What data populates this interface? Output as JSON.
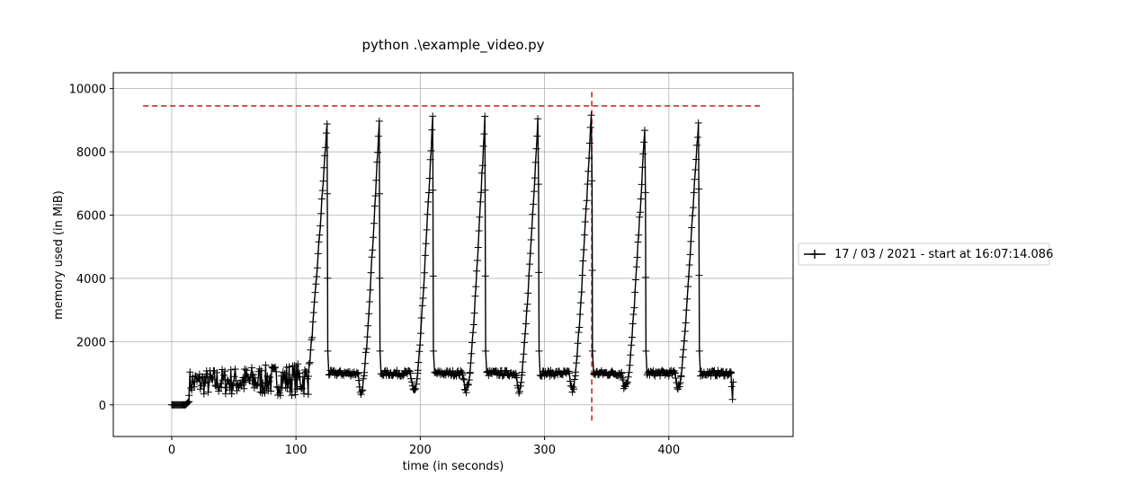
{
  "chart_data": {
    "type": "line",
    "title": "python .\\example_video.py",
    "xlabel": "time (in seconds)",
    "ylabel": "memory used (in MiB)",
    "xlim": [
      -47,
      500
    ],
    "ylim": [
      -1000,
      10500
    ],
    "xticks": [
      0,
      100,
      200,
      300,
      400
    ],
    "yticks": [
      0,
      2000,
      4000,
      6000,
      8000,
      10000
    ],
    "grid": true,
    "legend_position": "outside-right",
    "colors": {
      "series": "#000000",
      "reference": "#d62728",
      "grid": "#b0b0b0"
    },
    "reference_lines": [
      {
        "orientation": "horizontal",
        "y": 9450,
        "x_range": [
          -23,
          475
        ],
        "style": "dashed",
        "color": "#d62728"
      },
      {
        "orientation": "vertical",
        "x": 338,
        "y_range": [
          -500,
          9900
        ],
        "style": "dashed",
        "color": "#d62728"
      }
    ],
    "series": [
      {
        "name": "17 / 03 / 2021 - start at 16:07:14.086",
        "marker": "+",
        "color": "#000000",
        "warmup": {
          "x": [
            0,
            14
          ],
          "y": 0
        },
        "noisy_phase": {
          "x": [
            14,
            110
          ],
          "y_min": 300,
          "y_max_start": 1100,
          "y_max_end": 1350
        },
        "cycles": [
          {
            "start": 110,
            "peak_x": 125,
            "peak_y": 8900,
            "plateau_end": 150,
            "trough_y": 300
          },
          {
            "start": 155,
            "peak_x": 167,
            "peak_y": 8900,
            "plateau_end": 192,
            "trough_y": 300
          },
          {
            "start": 198,
            "peak_x": 210,
            "peak_y": 9050,
            "plateau_end": 234,
            "trough_y": 300
          },
          {
            "start": 240,
            "peak_x": 252,
            "peak_y": 9050,
            "plateau_end": 277,
            "trough_y": 300
          },
          {
            "start": 282,
            "peak_x": 295,
            "peak_y": 9300,
            "plateau_end": 320,
            "trough_y": 300
          },
          {
            "start": 325,
            "peak_x": 338,
            "peak_y": 9450,
            "plateau_end": 362,
            "trough_y": 350
          },
          {
            "start": 368,
            "peak_x": 381,
            "peak_y": 8950,
            "plateau_end": 405,
            "trough_y": 300
          },
          {
            "start": 410,
            "peak_x": 424,
            "peak_y": 9100,
            "plateau_end": 450,
            "trough_y": 100
          }
        ],
        "plateau_level": 1000
      }
    ]
  }
}
